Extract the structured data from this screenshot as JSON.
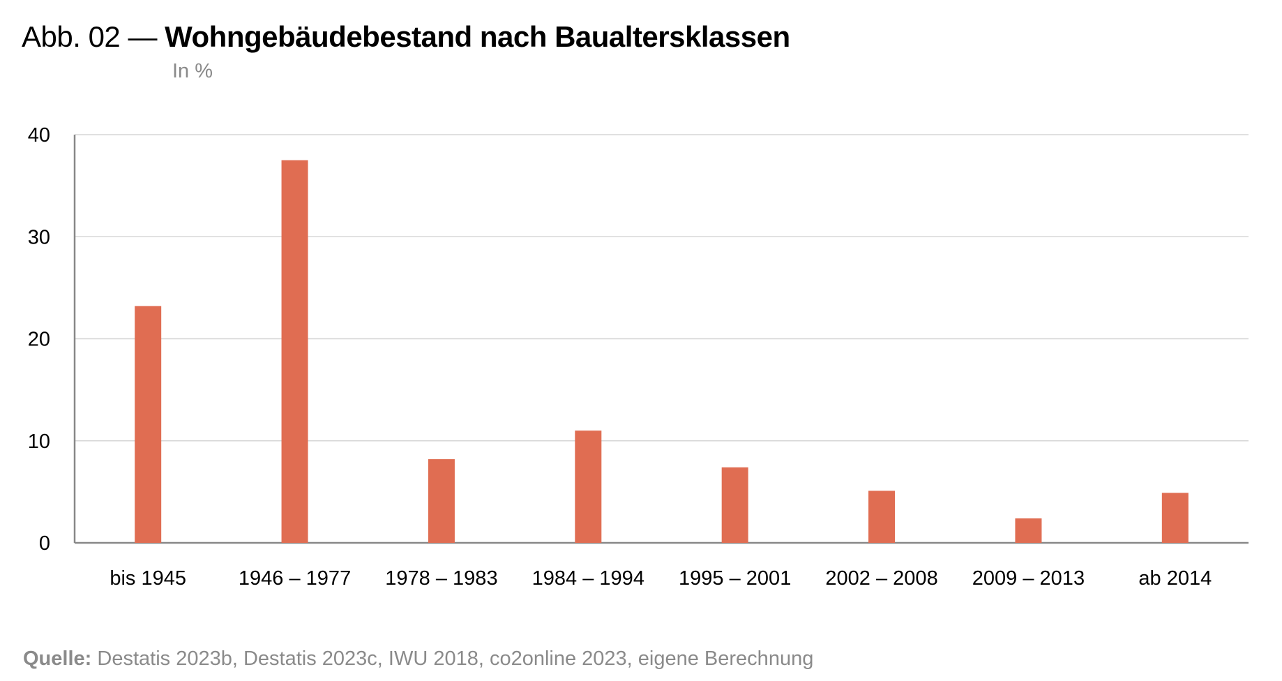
{
  "header": {
    "prefix": "Abb. 02 —",
    "title": "Wohngebäudebestand nach Baualtersklassen",
    "subtitle": "In %"
  },
  "footer": {
    "source_label": "Quelle:",
    "source_text": "Destatis 2023b, Destatis 2023c, IWU 2018, co2online 2023, eigene Berechnung"
  },
  "colors": {
    "bar": "#e06d52",
    "grid": "#d6d6d6",
    "axis": "#888888"
  },
  "chart_data": {
    "type": "bar",
    "title": "Wohngebäudebestand nach Baualtersklassen",
    "ylabel": "In %",
    "xlabel": "",
    "categories": [
      "bis 1945",
      "1946 – 1977",
      "1978 – 1983",
      "1984 – 1994",
      "1995 – 2001",
      "2002 – 2008",
      "2009 – 2013",
      "ab 2014"
    ],
    "values": [
      23.2,
      37.5,
      8.2,
      11.0,
      7.4,
      5.1,
      2.4,
      4.9
    ],
    "ylim": [
      0,
      40
    ],
    "yticks": [
      0,
      10,
      20,
      30,
      40
    ],
    "grid": true,
    "legend": "none"
  }
}
